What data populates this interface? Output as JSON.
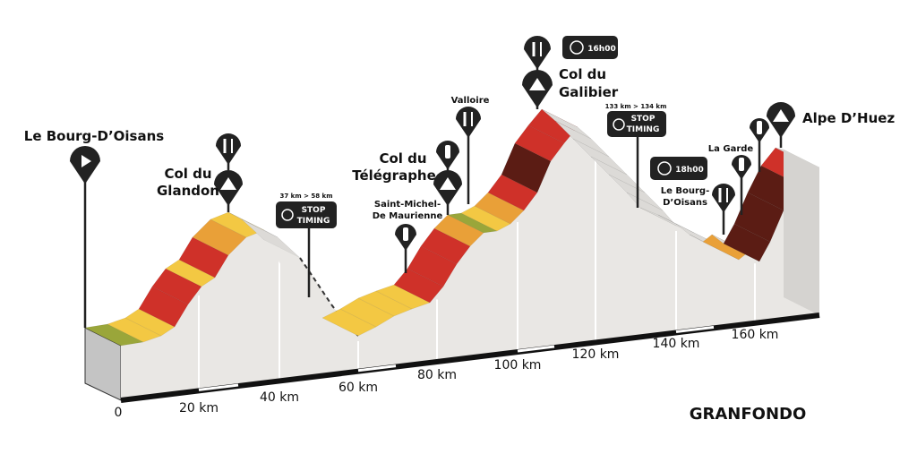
{
  "title": "GRANFONDO",
  "distance_labels": [
    "0",
    "20 km",
    "40 km",
    "60 km",
    "80 km",
    "100 km",
    "120 km",
    "140 km",
    "160 km"
  ],
  "start": "Le Bourg-D’Oisans",
  "climbs": [
    {
      "lines": [
        "Col du",
        "Glandon"
      ]
    },
    {
      "lines": [
        "Col du",
        "Télégraphe"
      ]
    },
    {
      "lines": [
        "Col du",
        "Galibier"
      ]
    },
    {
      "lines": [
        "Alpe D’Huez"
      ]
    }
  ],
  "places": [
    {
      "lines": [
        "Saint-Michel-",
        "De Maurienne"
      ]
    },
    {
      "lines": [
        "Valloire"
      ]
    },
    {
      "lines": [
        "Le Bourg-",
        "D’Oisans"
      ]
    },
    {
      "lines": [
        "La Garde"
      ]
    }
  ],
  "timing": [
    {
      "range": "37 km > 58 km",
      "lines": [
        "STOP",
        "TIMING"
      ]
    },
    {
      "range": "133 km > 134 km",
      "lines": [
        "STOP",
        "TIMING"
      ]
    }
  ],
  "cutoffs": [
    "16h00",
    "18h00"
  ]
}
